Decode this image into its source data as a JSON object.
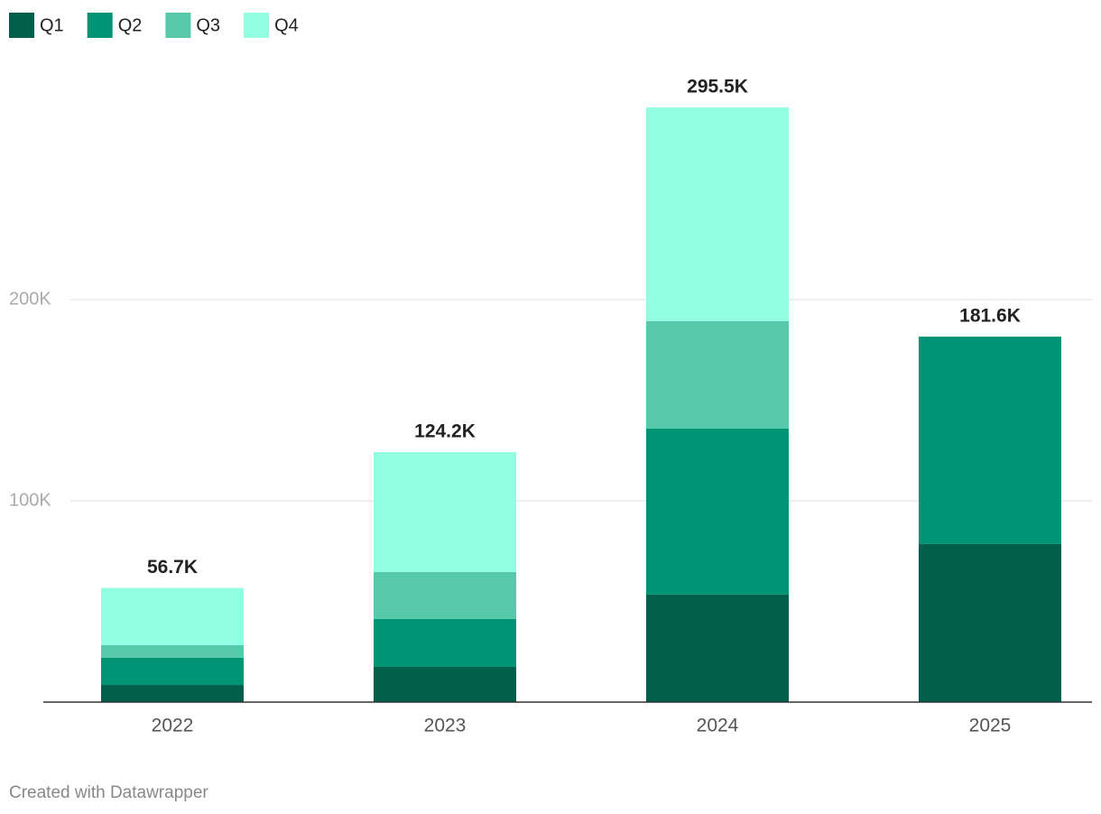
{
  "chart_data": {
    "type": "stacked-bar",
    "categories": [
      "2022",
      "2023",
      "2024",
      "2025"
    ],
    "series": [
      {
        "name": "Q1",
        "color": "#005f4b",
        "values": [
          8500,
          17500,
          53400,
          78500
        ]
      },
      {
        "name": "Q2",
        "color": "#009376",
        "values": [
          13500,
          23800,
          82500,
          103100
        ]
      },
      {
        "name": "Q3",
        "color": "#55c9aa",
        "values": [
          6300,
          23300,
          53400,
          null
        ]
      },
      {
        "name": "Q4",
        "color": "#92ffe0",
        "values": [
          28400,
          59600,
          106200,
          null
        ]
      }
    ],
    "total_labels": [
      "56.7K",
      "124.2K",
      "295.5K",
      "181.6K"
    ],
    "ylim": [
      0,
      300000
    ],
    "yticks": [
      {
        "value": 100000,
        "label": "100K"
      },
      {
        "value": 200000,
        "label": "200K"
      }
    ],
    "grid": true,
    "legend": "top-left",
    "footer": "Created with Datawrapper"
  }
}
